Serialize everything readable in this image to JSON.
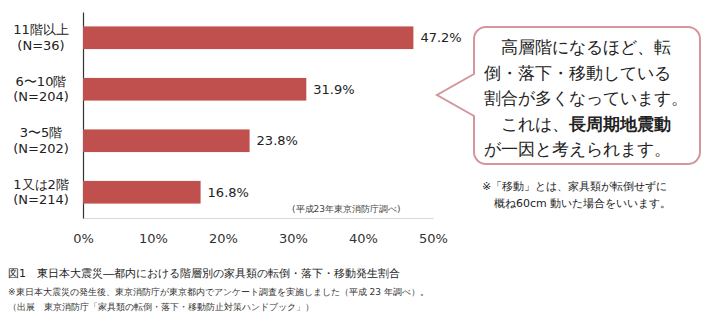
{
  "chart_data": {
    "type": "bar",
    "orientation": "horizontal",
    "categories": [
      "11階以上\n(N=36)",
      "6〜10階\n(N=204)",
      "3〜5階\n(N=202)",
      "1又は2階\n(N=214)"
    ],
    "values": [
      47.2,
      31.9,
      23.8,
      16.8
    ],
    "value_labels": [
      "47.2%",
      "31.9%",
      "23.8%",
      "16.8%"
    ],
    "data_labels": true,
    "color": "#c0504d",
    "grid": false,
    "xlim": [
      0,
      50
    ],
    "xticks": [
      {
        "value": 0,
        "label": "0%"
      },
      {
        "value": 10,
        "label": "10%"
      },
      {
        "value": 20,
        "label": "20%"
      },
      {
        "value": 30,
        "label": "30%"
      },
      {
        "value": 40,
        "label": "40%"
      },
      {
        "value": 50,
        "label": "50%"
      }
    ],
    "source_note": "(平成23年東京消防庁調べ)",
    "callout": {
      "lines": [
        "　高層階になるほど、転",
        "倒・落下・移動している",
        "割合が多くなっています。",
        "　これは、長周期地震動",
        "が一因と考えられます。"
      ],
      "emphasis": "長周期地震動"
    },
    "notes": [
      "※「移動」とは、家具類が転倒せずに",
      "概ね60cm 動いた場合をいいます。"
    ],
    "caption": "図1　東日本大震災―都内における階層別の家具類の転倒・落下・移動発生割合",
    "footnotes": [
      "※東日本大震災の発生後、東京消防庁が東京都内でアンケート調査を実施しました（平成 23 年調べ）。",
      "（出展　東京消防庁「家具類の転倒・落下・移動防止対策ハンドブック」）"
    ]
  }
}
